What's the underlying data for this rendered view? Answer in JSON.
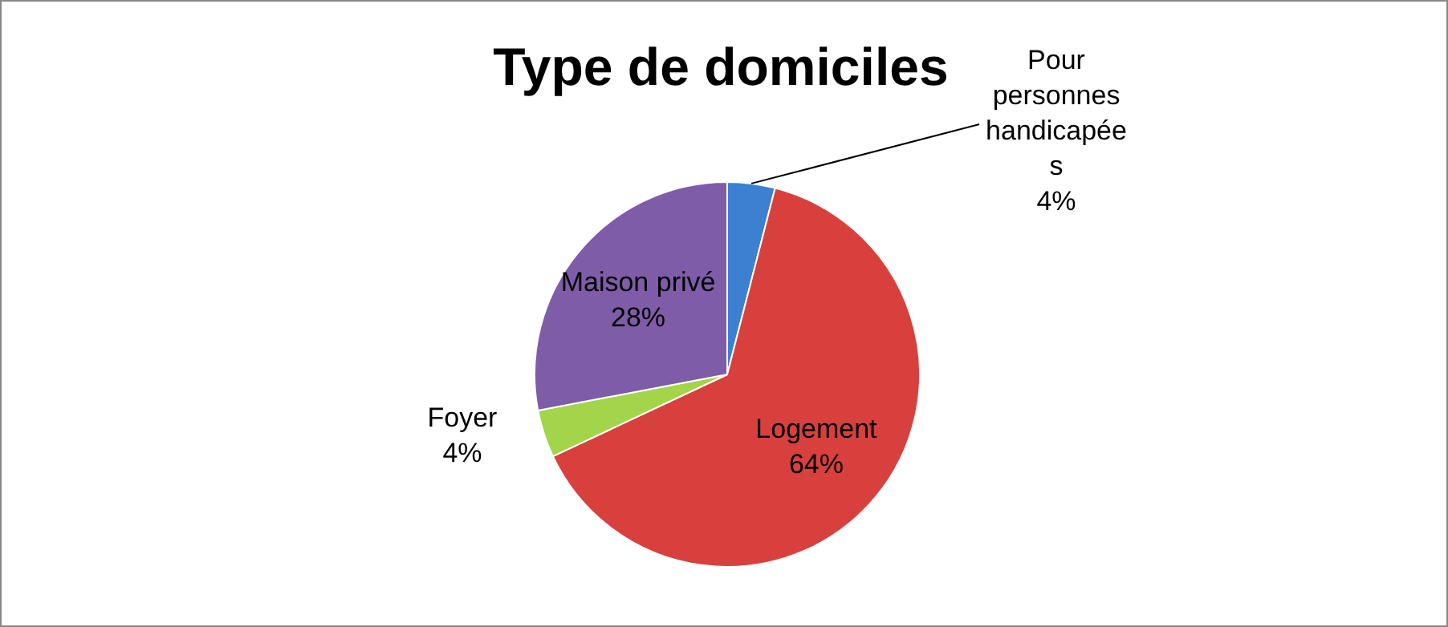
{
  "chart_data": {
    "type": "pie",
    "title": "Type de domiciles",
    "categories": [
      "Pour personnes handicapées",
      "Logement",
      "Foyer",
      "Maison privé"
    ],
    "values": [
      4,
      64,
      4,
      28
    ],
    "colors": [
      "#3c80d2",
      "#d8403e",
      "#a2d54a",
      "#7e5ca8"
    ],
    "value_labels": [
      "4%",
      "64%",
      "4%",
      "28%"
    ],
    "legend": false
  }
}
